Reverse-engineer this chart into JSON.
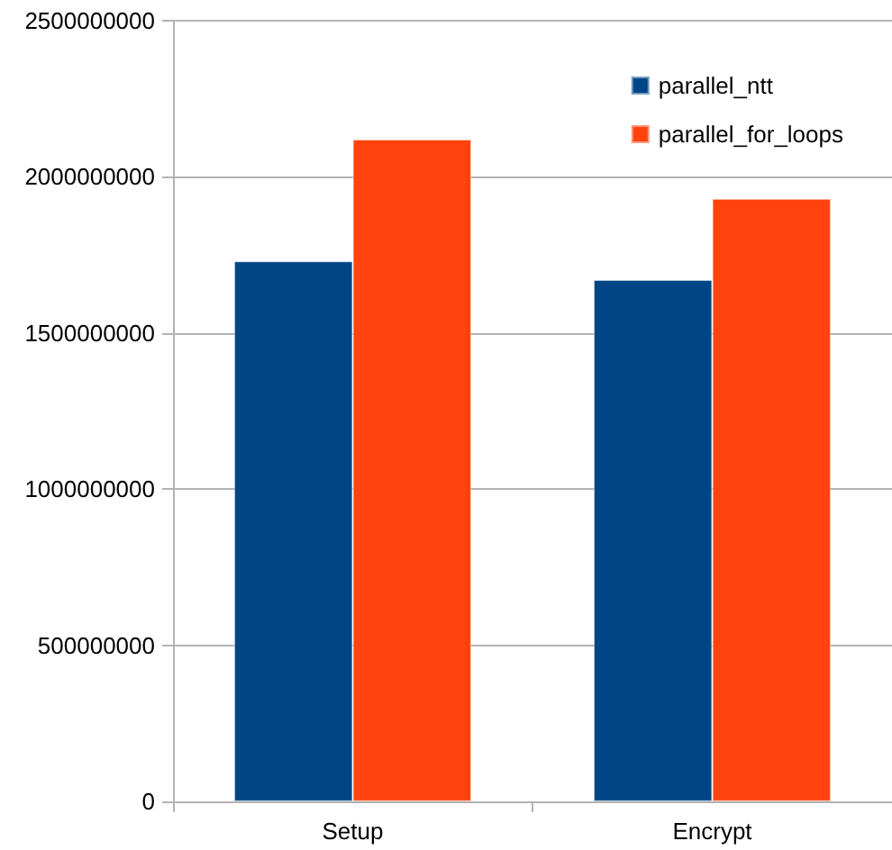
{
  "chart_data": {
    "type": "bar",
    "categories": [
      "Setup",
      "Encrypt"
    ],
    "series": [
      {
        "name": "parallel_ntt",
        "color": "#004586",
        "values": [
          1730000000,
          1670000000
        ]
      },
      {
        "name": "parallel_for_loops",
        "color": "#ff420e",
        "values": [
          2120000000,
          1930000000
        ]
      }
    ],
    "ylim": [
      0,
      2500000000
    ],
    "yticks": [
      0,
      500000000,
      1000000000,
      1500000000,
      2000000000,
      2500000000
    ],
    "grid": "y",
    "legend": "top right"
  }
}
